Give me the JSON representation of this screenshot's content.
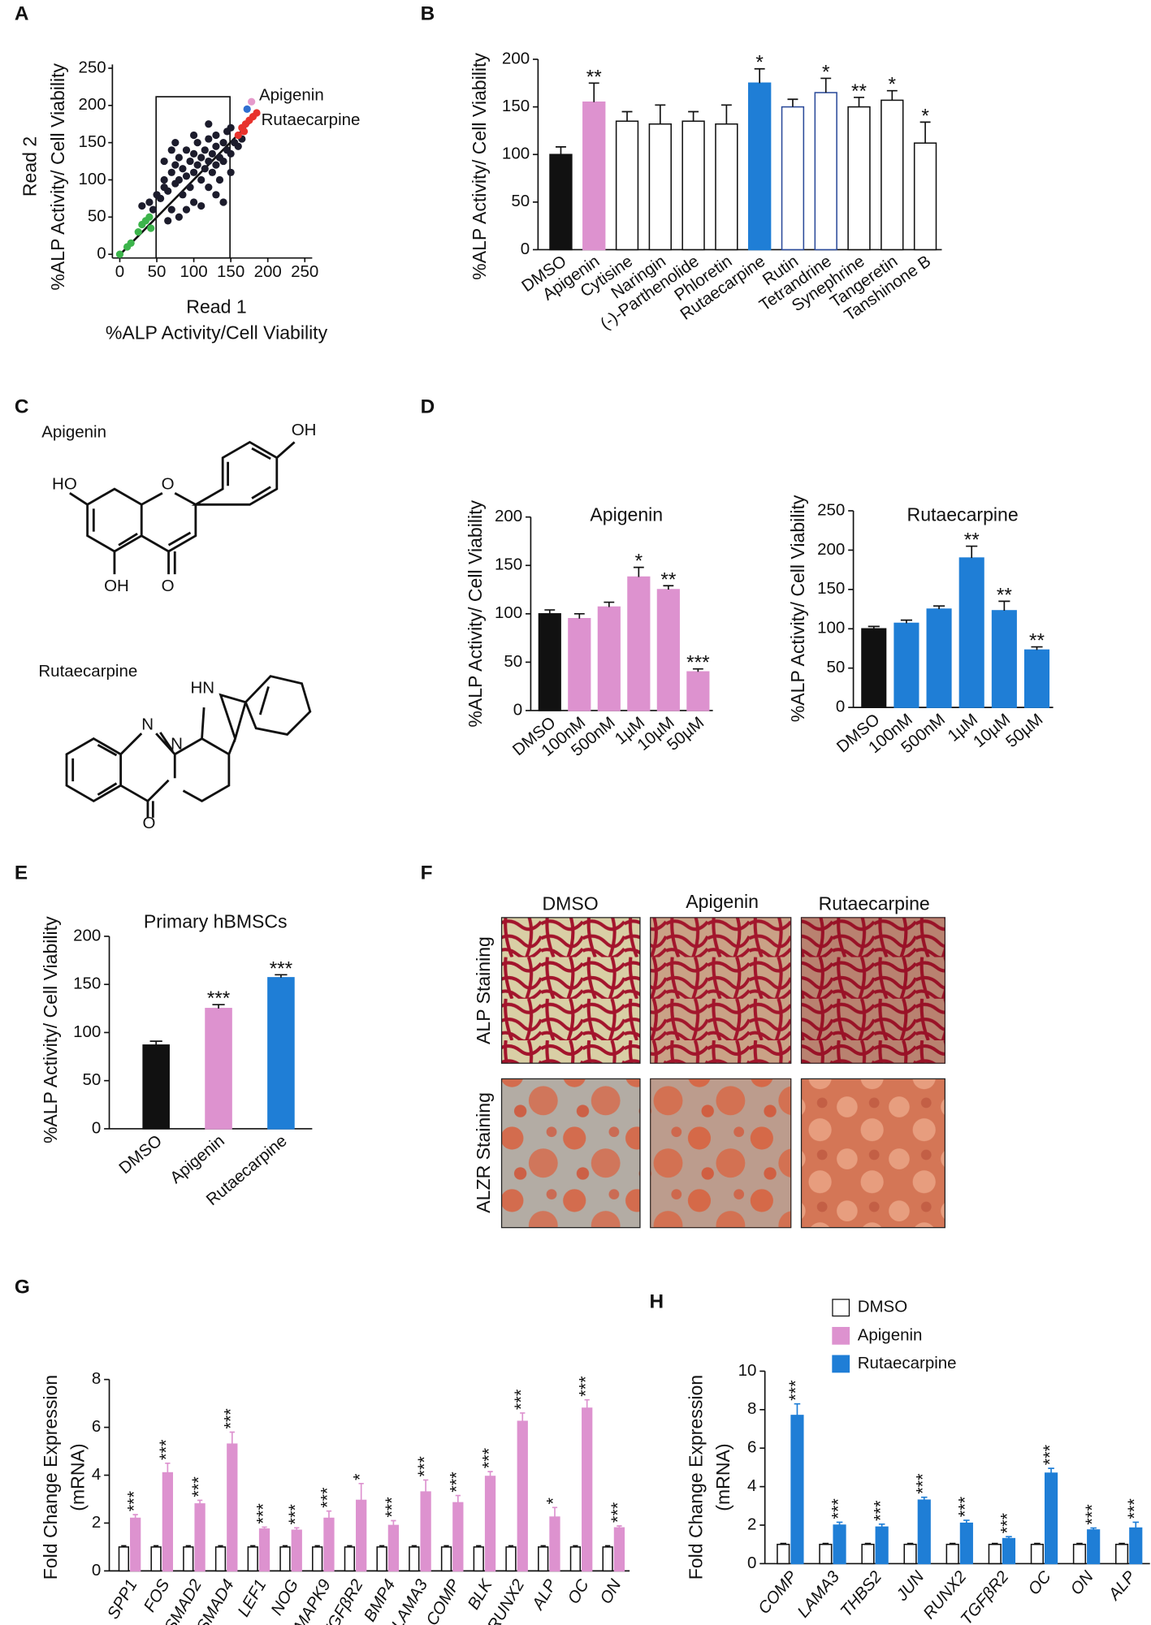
{
  "panel_labels": [
    "A",
    "B",
    "C",
    "D",
    "E",
    "F",
    "G",
    "H"
  ],
  "structures": {
    "apigenin": {
      "name": "Apigenin",
      "atoms": [
        "HO",
        "O",
        "OH",
        "OH",
        "O"
      ]
    },
    "rutaecarpine": {
      "name": "Rutaecarpine",
      "atoms": [
        "HN",
        "N",
        "N",
        "O"
      ]
    }
  },
  "staining": {
    "columns": [
      "DMSO",
      "Apigenin",
      "Rutaecarpine"
    ],
    "rows": [
      "ALP Staining",
      "ALZR Staining"
    ]
  },
  "chart_data": [
    {
      "type": "scatter",
      "xlabel": [
        "Read 1",
        "%ALP Activity/Cell Viability"
      ],
      "ylabel": [
        "Read 2",
        "%ALP Activity/ Cell Viability"
      ],
      "xlim": [
        -10,
        260
      ],
      "ylim": [
        -5,
        255
      ],
      "xticks": [
        0,
        50,
        100,
        150,
        200,
        250
      ],
      "yticks": [
        0,
        50,
        100,
        150,
        200,
        250
      ],
      "annotations": [
        "Apigenin",
        "Rutaecarpine"
      ],
      "series": [
        {
          "color": "#1c1c2c",
          "x": [
            30,
            40,
            45,
            50,
            55,
            60,
            60,
            65,
            70,
            70,
            75,
            75,
            80,
            80,
            85,
            85,
            90,
            90,
            95,
            95,
            100,
            100,
            100,
            105,
            105,
            110,
            110,
            115,
            115,
            120,
            120,
            120,
            125,
            125,
            130,
            130,
            130,
            135,
            135,
            140,
            140,
            145,
            145,
            150,
            150,
            155,
            160,
            165,
            70,
            60,
            90,
            110,
            130,
            140,
            80,
            65,
            100,
            120,
            75,
            150
          ],
          "y": [
            65,
            70,
            60,
            80,
            75,
            90,
            100,
            85,
            110,
            60,
            95,
            120,
            100,
            130,
            115,
            80,
            105,
            140,
            125,
            90,
            110,
            135,
            70,
            120,
            150,
            100,
            130,
            140,
            115,
            125,
            90,
            155,
            135,
            110,
            145,
            120,
            160,
            130,
            100,
            150,
            125,
            140,
            165,
            135,
            110,
            150,
            145,
            155,
            140,
            125,
            60,
            65,
            80,
            70,
            50,
            45,
            160,
            175,
            150,
            170
          ]
        },
        {
          "color": "#3cb44b",
          "x": [
            0,
            10,
            15,
            25,
            30,
            35,
            40,
            42
          ],
          "y": [
            0,
            10,
            15,
            30,
            40,
            45,
            50,
            35
          ]
        },
        {
          "color": "#e8322c",
          "x": [
            160,
            165,
            170,
            175,
            180,
            185,
            168
          ],
          "y": [
            160,
            170,
            175,
            180,
            185,
            190,
            165
          ]
        },
        {
          "color": "#e59acb",
          "x": [
            178
          ],
          "y": [
            205
          ]
        },
        {
          "color": "#2f6fd0",
          "x": [
            172
          ],
          "y": [
            195
          ]
        }
      ]
    },
    {
      "type": "bar",
      "ylabel": [
        "%ALP Activity/ Cell Viability"
      ],
      "ylim": [
        0,
        200
      ],
      "yticks": [
        0,
        50,
        100,
        150,
        200
      ],
      "categories": [
        "DMSO",
        "Apigenin",
        "Cytisine",
        "Naringin",
        "(-)-Parthenolide",
        "Phloretin",
        "Rutaecarpine",
        "Rutin",
        "Tetrandrine",
        "Synephrine",
        "Tangeretin",
        "Tanshinone B"
      ],
      "values": [
        100,
        155,
        135,
        132,
        135,
        132,
        175,
        150,
        165,
        150,
        157,
        112
      ],
      "errors": [
        8,
        20,
        10,
        20,
        10,
        20,
        15,
        8,
        15,
        10,
        10,
        22
      ],
      "colors": [
        "#111111",
        "#dd92cf",
        "#ffffff",
        "#ffffff",
        "#ffffff",
        "#ffffff",
        "#1f7ed6",
        "#ffffff",
        "#ffffff",
        "#ffffff",
        "#ffffff",
        "#ffffff"
      ],
      "edgecolors": [
        "#111111",
        "#dd92cf",
        "#111111",
        "#111111",
        "#111111",
        "#111111",
        "#1f7ed6",
        "#2b4a9a",
        "#2b4a9a",
        "#111111",
        "#111111",
        "#111111"
      ],
      "annotations": [
        null,
        "**",
        null,
        null,
        null,
        null,
        "*",
        null,
        "*",
        "**",
        "*",
        "*"
      ]
    },
    {
      "type": "bar",
      "title": "Apigenin",
      "ylabel": [
        "%ALP Activity/ Cell Viability"
      ],
      "ylim": [
        0,
        200
      ],
      "yticks": [
        0,
        50,
        100,
        150,
        200
      ],
      "categories": [
        "DMSO",
        "100nM",
        "500nM",
        "1µM",
        "10µM",
        "50µM"
      ],
      "values": [
        100,
        95,
        107,
        138,
        125,
        40
      ],
      "errors": [
        4,
        5,
        5,
        10,
        4,
        3
      ],
      "colors": [
        "#111111",
        "#dd92cf",
        "#dd92cf",
        "#dd92cf",
        "#dd92cf",
        "#dd92cf"
      ],
      "annotations": [
        null,
        null,
        null,
        "*",
        "**",
        "***"
      ]
    },
    {
      "type": "bar",
      "title": "Rutaecarpine",
      "ylabel": [
        "%ALP Activity/ Cell Viability"
      ],
      "ylim": [
        0,
        250
      ],
      "yticks": [
        0,
        50,
        100,
        150,
        200,
        250
      ],
      "categories": [
        "DMSO",
        "100nM",
        "500nM",
        "1µM",
        "10µM",
        "50µM"
      ],
      "values": [
        100,
        107,
        125,
        190,
        123,
        73
      ],
      "errors": [
        3,
        4,
        4,
        15,
        12,
        4
      ],
      "colors": [
        "#111111",
        "#1f7ed6",
        "#1f7ed6",
        "#1f7ed6",
        "#1f7ed6",
        "#1f7ed6"
      ],
      "annotations": [
        null,
        null,
        null,
        "**",
        "**",
        "**"
      ]
    },
    {
      "type": "bar",
      "title": "Primary hBMSCs",
      "ylabel": [
        "%ALP Activity/ Cell Viability"
      ],
      "ylim": [
        0,
        200
      ],
      "yticks": [
        0,
        50,
        100,
        150,
        200
      ],
      "categories": [
        "DMSO",
        "Apigenin",
        "Rutaecarpine"
      ],
      "values": [
        87,
        125,
        157
      ],
      "errors": [
        4,
        4,
        3
      ],
      "colors": [
        "#111111",
        "#dd92cf",
        "#1f7ed6"
      ],
      "annotations": [
        null,
        "***",
        "***"
      ]
    },
    {
      "type": "bar",
      "ylabel": [
        "Fold Change Expression",
        "(mRNA)"
      ],
      "ylim": [
        0,
        8
      ],
      "yticks": [
        0,
        2,
        4,
        6,
        8
      ],
      "categories": [
        "SPP1",
        "FOS",
        "SMAD2",
        "SMAD4",
        "LEF1",
        "NOG",
        "MAPK9",
        "TGFβR2",
        "BMP4",
        "LAMA3",
        "COMP",
        "BLK",
        "RUNX2",
        "ALP",
        "OC",
        "ON"
      ],
      "series": [
        {
          "color": "#ffffff",
          "edgecolor": "#111111",
          "values": [
            1,
            1,
            1,
            1,
            1,
            1,
            1,
            1,
            1,
            1,
            1,
            1,
            1,
            1,
            1,
            1
          ],
          "errors": [
            0.05,
            0.05,
            0.05,
            0.05,
            0.05,
            0.05,
            0.05,
            0.05,
            0.05,
            0.05,
            0.05,
            0.05,
            0.05,
            0.05,
            0.05,
            0.05
          ]
        },
        {
          "color": "#dd92cf",
          "values": [
            2.2,
            4.1,
            2.8,
            5.3,
            1.75,
            1.7,
            2.2,
            2.95,
            1.9,
            3.3,
            2.85,
            3.95,
            6.25,
            2.25,
            6.8,
            1.8
          ],
          "errors": [
            0.15,
            0.4,
            0.15,
            0.5,
            0.08,
            0.1,
            0.3,
            0.7,
            0.2,
            0.5,
            0.3,
            0.2,
            0.35,
            0.4,
            0.35,
            0.08
          ],
          "annotations": [
            "***",
            "***",
            "***",
            "***",
            "***",
            "***",
            "***",
            "*",
            "***",
            "***",
            "***",
            "***",
            "***",
            "*",
            "***",
            "***"
          ]
        }
      ]
    },
    {
      "type": "bar",
      "ylabel": [
        "Fold Change Expression",
        "(mRNA)"
      ],
      "ylim": [
        0,
        10
      ],
      "yticks": [
        0,
        2,
        4,
        6,
        8,
        10
      ],
      "categories": [
        "COMP",
        "LAMA3",
        "THBS2",
        "JUN",
        "RUNX2",
        "TGFβR2",
        "OC",
        "ON",
        "ALP"
      ],
      "legend": [
        {
          "name": "DMSO",
          "color": "#ffffff"
        },
        {
          "name": "Apigenin",
          "color": "#dd92cf"
        },
        {
          "name": "Rutaecarpine",
          "color": "#1f7ed6"
        }
      ],
      "series": [
        {
          "color": "#ffffff",
          "edgecolor": "#111111",
          "values": [
            1,
            1,
            1,
            1,
            1,
            1,
            1,
            1,
            1
          ],
          "errors": [
            0.05,
            0.05,
            0.05,
            0.05,
            0.05,
            0.05,
            0.05,
            0.05,
            0.05
          ]
        },
        {
          "color": "#1f7ed6",
          "values": [
            7.7,
            2.0,
            1.9,
            3.3,
            2.1,
            1.3,
            4.7,
            1.75,
            1.85
          ],
          "errors": [
            0.6,
            0.15,
            0.15,
            0.15,
            0.15,
            0.1,
            0.25,
            0.1,
            0.3
          ],
          "annotations": [
            "***",
            "***",
            "***",
            "***",
            "***",
            "***",
            "***",
            "***",
            "***"
          ]
        }
      ]
    }
  ]
}
